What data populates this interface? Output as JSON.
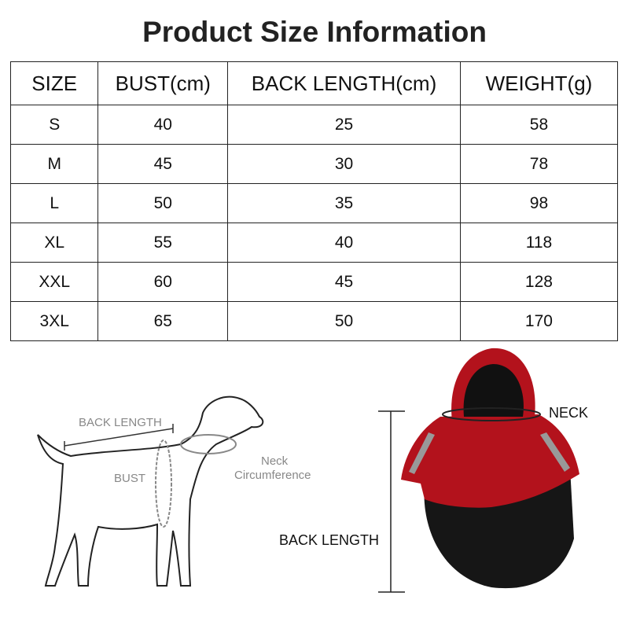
{
  "title": "Product Size Information",
  "table": {
    "headers": [
      "SIZE",
      "BUST(cm)",
      "BACK LENGTH(cm)",
      "WEIGHT(g)"
    ],
    "rows": [
      [
        "S",
        "40",
        "25",
        "58"
      ],
      [
        "M",
        "45",
        "30",
        "78"
      ],
      [
        "L",
        "50",
        "35",
        "98"
      ],
      [
        "XL",
        "55",
        "40",
        "118"
      ],
      [
        "XXL",
        "60",
        "45",
        "128"
      ],
      [
        "3XL",
        "65",
        "50",
        "170"
      ]
    ]
  },
  "dog_diagram": {
    "back_length": "BACK LENGTH",
    "bust": "BUST",
    "neck_line1": "Neck",
    "neck_line2": "Circumference"
  },
  "coat_diagram": {
    "neck": "NECK",
    "back_length": "BACK LENGTH",
    "coat_color": "#b3121c"
  }
}
